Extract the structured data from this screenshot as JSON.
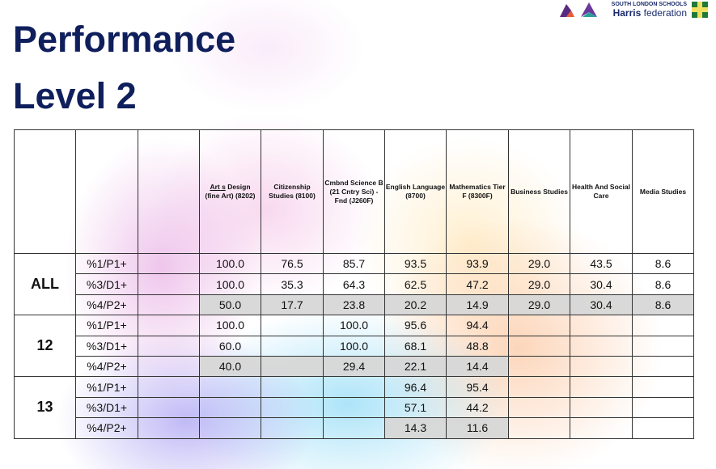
{
  "title": [
    "Performance",
    "Level 2"
  ],
  "logo": {
    "name": "Harris",
    "suffix": "federation",
    "tag": "SOUTH LONDON SCHOOLS"
  },
  "columns": [
    "Art s Design (fine Art) (8202)",
    "Citizenship Studies (8100)",
    "Cmbnd Science B (21 Cntry Sci) - Fnd (J260F)",
    "English Language (8700)",
    "Mathematics Tier F (8300F)",
    "Business Studies",
    "Health And Social Care",
    "Media Studies"
  ],
  "groups": [
    {
      "label": "ALL",
      "rows": [
        {
          "measure": "%1/P1+",
          "values": [
            "100.0",
            "76.5",
            "85.7",
            "93.5",
            "93.9",
            "29.0",
            "43.5",
            "8.6"
          ],
          "shaded": [
            0,
            0,
            0,
            0,
            0,
            0,
            0,
            0
          ]
        },
        {
          "measure": "%3/D1+",
          "values": [
            "100.0",
            "35.3",
            "64.3",
            "62.5",
            "47.2",
            "29.0",
            "30.4",
            "8.6"
          ],
          "shaded": [
            0,
            0,
            0,
            0,
            0,
            0,
            0,
            0
          ]
        },
        {
          "measure": "%4/P2+",
          "values": [
            "50.0",
            "17.7",
            "23.8",
            "20.2",
            "14.9",
            "29.0",
            "30.4",
            "8.6"
          ],
          "shaded": [
            1,
            1,
            1,
            1,
            1,
            1,
            1,
            1
          ]
        }
      ]
    },
    {
      "label": "12",
      "rows": [
        {
          "measure": "%1/P1+",
          "values": [
            "100.0",
            "",
            "100.0",
            "95.6",
            "94.4",
            "",
            "",
            ""
          ],
          "shaded": [
            0,
            0,
            0,
            0,
            0,
            0,
            0,
            0
          ]
        },
        {
          "measure": "%3/D1+",
          "values": [
            "60.0",
            "",
            "100.0",
            "68.1",
            "48.8",
            "",
            "",
            ""
          ],
          "shaded": [
            0,
            0,
            0,
            0,
            0,
            0,
            0,
            0
          ]
        },
        {
          "measure": "%4/P2+",
          "values": [
            "40.0",
            "",
            "29.4",
            "22.1",
            "14.4",
            "",
            "",
            ""
          ],
          "shaded": [
            1,
            1,
            1,
            1,
            1,
            0,
            0,
            0
          ]
        }
      ]
    },
    {
      "label": "13",
      "rows": [
        {
          "measure": "%1/P1+",
          "values": [
            "",
            "",
            "",
            "96.4",
            "95.4",
            "",
            "",
            ""
          ],
          "shaded": [
            0,
            0,
            0,
            0,
            0,
            0,
            0,
            0
          ]
        },
        {
          "measure": "%3/D1+",
          "values": [
            "",
            "",
            "",
            "57.1",
            "44.2",
            "",
            "",
            ""
          ],
          "shaded": [
            0,
            0,
            0,
            0,
            0,
            0,
            0,
            0
          ]
        },
        {
          "measure": "%4/P2+",
          "values": [
            "",
            "",
            "",
            "14.3",
            "11.6",
            "",
            "",
            ""
          ],
          "shaded": [
            0,
            0,
            0,
            1,
            1,
            0,
            0,
            0
          ]
        }
      ]
    }
  ]
}
